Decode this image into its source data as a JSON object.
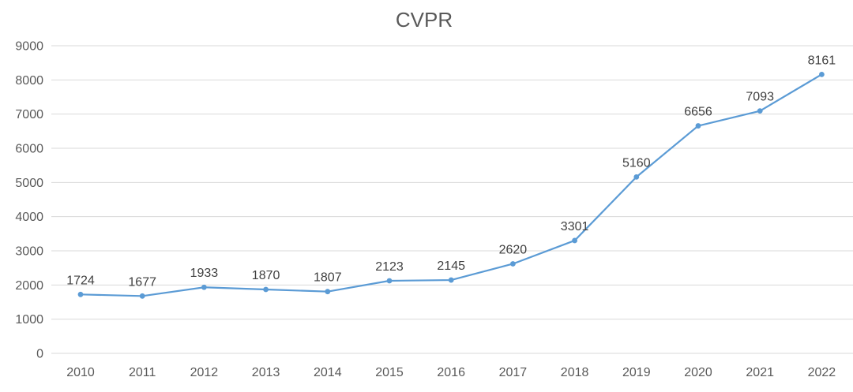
{
  "chart_data": {
    "type": "line",
    "title": "CVPR",
    "categories": [
      "2010",
      "2011",
      "2012",
      "2013",
      "2014",
      "2015",
      "2016",
      "2017",
      "2018",
      "2019",
      "2020",
      "2021",
      "2022"
    ],
    "series": [
      {
        "name": "CVPR",
        "values": [
          1724,
          1677,
          1933,
          1870,
          1807,
          2123,
          2145,
          2620,
          3301,
          5160,
          6656,
          7093,
          8161
        ]
      }
    ],
    "data_labels": [
      "1724",
      "1677",
      "1933",
      "1870",
      "1807",
      "2123",
      "2145",
      "2620",
      "3301",
      "5160",
      "6656",
      "7093",
      "8161"
    ],
    "ylim": [
      0,
      9000
    ],
    "ytick_interval": 1000,
    "ytick_labels": [
      "0",
      "1000",
      "2000",
      "3000",
      "4000",
      "5000",
      "6000",
      "7000",
      "8000",
      "9000"
    ],
    "xlabel": "",
    "ylabel": "",
    "grid": "horizontal-only",
    "legend_position": "none",
    "colors": {
      "line": "#5B9BD5",
      "marker": "#5B9BD5",
      "gridline": "#D9D9D9",
      "axis_label": "#595959",
      "data_label": "#404040",
      "title": "#595959",
      "background": "#FFFFFF"
    }
  }
}
